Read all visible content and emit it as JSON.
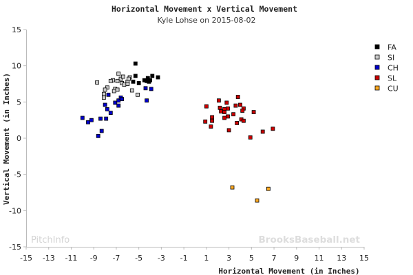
{
  "chart_data": {
    "type": "scatter",
    "title": "Horizontal Movement x Vertical Movement",
    "subtitle": "Kyle Lohse on 2015-08-02",
    "xlabel": "Horizontal Movement (in Inches)",
    "ylabel": "Vertical Movement (in Inches)",
    "xlim": [
      -15,
      15
    ],
    "ylim": [
      -15,
      15
    ],
    "xticks": [
      -15,
      -13,
      -11,
      -9,
      -7,
      -5,
      -3,
      -1,
      1,
      3,
      5,
      7,
      9,
      11,
      13,
      15
    ],
    "yticks": [
      15,
      10,
      5,
      0,
      -5,
      -10,
      -15
    ],
    "grid": false,
    "legend_position": "right",
    "watermark_left": "PitchInfo",
    "watermark_right": "BrooksBaseball.net",
    "series": [
      {
        "name": "FA",
        "color": "#000000",
        "points": [
          [
            -5.3,
            10.3
          ],
          [
            -5.3,
            8.6
          ],
          [
            -4.2,
            8.3
          ],
          [
            -4.0,
            8.0
          ],
          [
            -3.8,
            8.6
          ],
          [
            -3.3,
            8.4
          ],
          [
            -4.5,
            8.0
          ],
          [
            -5.0,
            7.6
          ],
          [
            -4.1,
            7.8
          ],
          [
            -5.5,
            7.8
          ],
          [
            -4.3,
            7.9
          ]
        ]
      },
      {
        "name": "SI",
        "color": "#cccccc",
        "points": [
          [
            -8.7,
            7.7
          ],
          [
            -6.8,
            8.9
          ],
          [
            -6.6,
            8.2
          ],
          [
            -6.4,
            8.5
          ],
          [
            -6.0,
            7.8
          ],
          [
            -5.8,
            8.4
          ],
          [
            -5.9,
            8.2
          ],
          [
            -7.3,
            8.0
          ],
          [
            -6.9,
            7.9
          ],
          [
            -7.5,
            7.9
          ],
          [
            -6.5,
            7.6
          ],
          [
            -6.3,
            7.4
          ],
          [
            -7.8,
            7.0
          ],
          [
            -7.1,
            6.8
          ],
          [
            -7.2,
            6.5
          ],
          [
            -6.9,
            6.7
          ],
          [
            -8.0,
            6.7
          ],
          [
            -8.1,
            6.1
          ],
          [
            -8.1,
            5.6
          ],
          [
            -5.6,
            6.6
          ],
          [
            -5.1,
            6.0
          ],
          [
            -6.0,
            7.5
          ]
        ]
      },
      {
        "name": "CH",
        "color": "#0000cc",
        "points": [
          [
            -10.0,
            2.8
          ],
          [
            -9.5,
            2.2
          ],
          [
            -9.2,
            2.5
          ],
          [
            -8.6,
            0.3
          ],
          [
            -8.4,
            2.7
          ],
          [
            -8.3,
            1.0
          ],
          [
            -8.0,
            4.6
          ],
          [
            -7.9,
            2.7
          ],
          [
            -7.8,
            4.0
          ],
          [
            -7.5,
            3.5
          ],
          [
            -7.7,
            6.0
          ],
          [
            -7.1,
            4.9
          ],
          [
            -6.8,
            5.2
          ],
          [
            -6.6,
            5.6
          ],
          [
            -6.8,
            4.5
          ],
          [
            -6.5,
            5.4
          ],
          [
            -4.4,
            6.9
          ],
          [
            -3.9,
            6.8
          ],
          [
            -4.3,
            5.2
          ]
        ]
      },
      {
        "name": "SL",
        "color": "#cc0000",
        "points": [
          [
            1.0,
            4.4
          ],
          [
            0.9,
            2.3
          ],
          [
            1.4,
            1.6
          ],
          [
            1.5,
            2.9
          ],
          [
            1.5,
            2.4
          ],
          [
            2.1,
            5.2
          ],
          [
            2.2,
            4.2
          ],
          [
            2.3,
            3.7
          ],
          [
            2.6,
            4.0
          ],
          [
            2.6,
            3.6
          ],
          [
            2.8,
            4.9
          ],
          [
            2.9,
            4.1
          ],
          [
            2.6,
            2.8
          ],
          [
            2.9,
            3.0
          ],
          [
            3.0,
            1.1
          ],
          [
            3.4,
            3.3
          ],
          [
            3.6,
            4.5
          ],
          [
            3.7,
            2.1
          ],
          [
            3.8,
            5.7
          ],
          [
            4.0,
            4.6
          ],
          [
            4.3,
            4.1
          ],
          [
            4.2,
            3.8
          ],
          [
            4.1,
            2.6
          ],
          [
            4.3,
            2.4
          ],
          [
            4.9,
            0.1
          ],
          [
            5.2,
            3.6
          ],
          [
            6.0,
            0.9
          ],
          [
            6.9,
            1.3
          ]
        ]
      },
      {
        "name": "CU",
        "color": "#ffaa22",
        "points": [
          [
            3.3,
            -6.8
          ],
          [
            5.5,
            -8.6
          ],
          [
            6.5,
            -7.0
          ]
        ]
      }
    ]
  }
}
